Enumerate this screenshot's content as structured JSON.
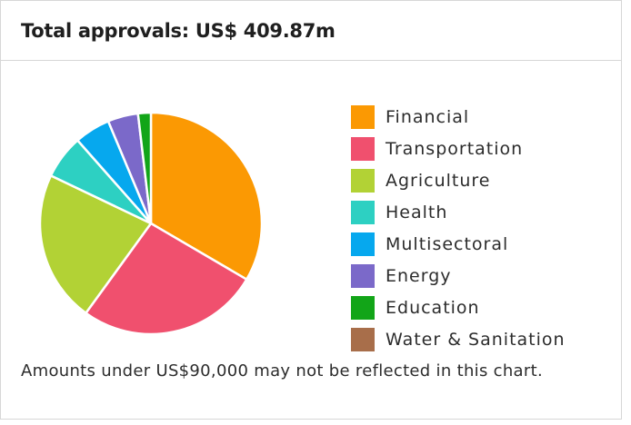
{
  "header": {
    "title": "Total approvals: US$ 409.87m"
  },
  "chart_data": {
    "type": "pie",
    "title": "Total approvals: US$ 409.87m",
    "start_angle_deg": 0,
    "direction": "clockwise",
    "slices": [
      {
        "label": "Financial",
        "value": 34.0,
        "color": "#FB9903"
      },
      {
        "label": "Transportation",
        "value": 27.0,
        "color": "#F0506E"
      },
      {
        "label": "Agriculture",
        "value": 22.5,
        "color": "#B2D235"
      },
      {
        "label": "Health",
        "value": 6.5,
        "color": "#2DD0C2"
      },
      {
        "label": "Multisectoral",
        "value": 5.3,
        "color": "#06A8EE"
      },
      {
        "label": "Energy",
        "value": 4.5,
        "color": "#7B69C9"
      },
      {
        "label": "Education",
        "value": 1.9,
        "color": "#12A518"
      },
      {
        "label": "Water & Sanitation",
        "value": 0,
        "color": "#A86E4A"
      }
    ],
    "legend_position": "right"
  },
  "footnote": "Amounts under US$90,000 may not be reflected in this chart."
}
